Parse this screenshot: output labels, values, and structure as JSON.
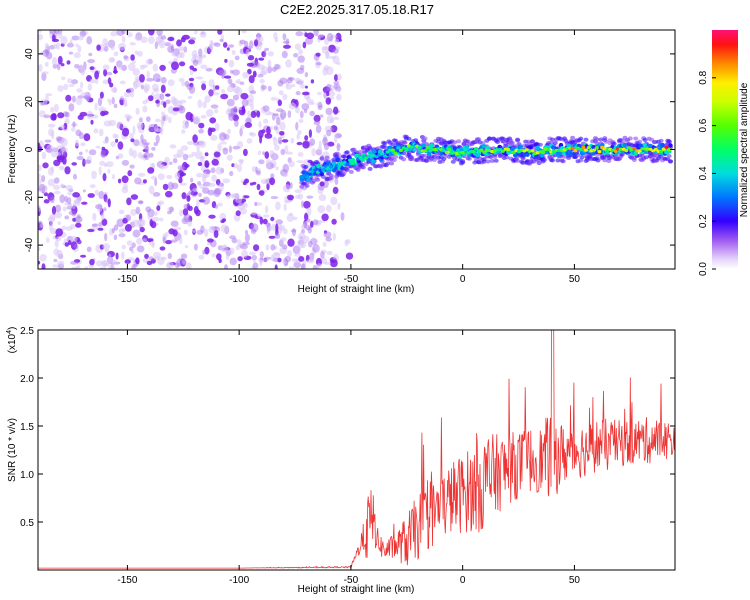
{
  "title": "C2E2.2025.317.05.18.R17",
  "colors": {
    "snr_line": "#ee3333",
    "axis": "#000000",
    "spectro_low": "#7b1fe8",
    "spectro_faint": "#d9c4f7"
  },
  "chart_data": [
    {
      "type": "heatmap",
      "name": "spectrogram",
      "xlabel": "Height of straight line (km)",
      "ylabel": "Frequency (Hz)",
      "xlim": [
        -190,
        95
      ],
      "ylim": [
        -50,
        50
      ],
      "xticks": [
        -150,
        -100,
        -50,
        0,
        50
      ],
      "yticks": [
        -40,
        -20,
        0,
        20,
        40
      ],
      "colorbar": {
        "label": "Normalized spectral amplitude",
        "range": [
          0.0,
          1.0
        ],
        "ticks": [
          0.0,
          0.2,
          0.4,
          0.6,
          0.8
        ],
        "tick_labels": [
          "0.0",
          "0.2",
          "0.4",
          "0.6",
          "0.8"
        ]
      },
      "signal_track": [
        {
          "x": -72,
          "y": -12,
          "amp": 0.35
        },
        {
          "x": -65,
          "y": -9,
          "amp": 0.4
        },
        {
          "x": -55,
          "y": -6,
          "amp": 0.45
        },
        {
          "x": -45,
          "y": -4,
          "amp": 0.5
        },
        {
          "x": -35,
          "y": -2,
          "amp": 0.55
        },
        {
          "x": -25,
          "y": 1,
          "amp": 0.6
        },
        {
          "x": -15,
          "y": 0,
          "amp": 0.6
        },
        {
          "x": 0,
          "y": -1,
          "amp": 0.62
        },
        {
          "x": 15,
          "y": 0,
          "amp": 0.65
        },
        {
          "x": 30,
          "y": -1,
          "amp": 0.7
        },
        {
          "x": 45,
          "y": 0,
          "amp": 0.8
        },
        {
          "x": 60,
          "y": 0,
          "amp": 0.85
        },
        {
          "x": 75,
          "y": 0,
          "amp": 0.9
        },
        {
          "x": 93,
          "y": 0,
          "amp": 0.9
        }
      ],
      "noise_region": {
        "x_from": -190,
        "x_to": -55,
        "amp": 0.1
      }
    },
    {
      "type": "line",
      "name": "snr",
      "xlabel": "Height of straight line (km)",
      "ylabel": "SNR (10 * v/v)",
      "y_multiplier_label": "(x10",
      "y_multiplier_exp": "4",
      "y_multiplier_close": ")",
      "xlim": [
        -190,
        95
      ],
      "ylim": [
        0,
        2.5
      ],
      "xticks": [
        -150,
        -100,
        -50,
        0,
        50
      ],
      "yticks": [
        0.5,
        1.0,
        1.5,
        2.0,
        2.5
      ],
      "ytick_labels": [
        "0.5",
        "1.0",
        "1.5",
        "2.0",
        "2.5"
      ],
      "series": [
        {
          "name": "SNR",
          "x": [
            -190,
            -150,
            -100,
            -50,
            -45,
            -42,
            -40,
            -38,
            -35,
            -30,
            -25,
            -20,
            -15,
            -10,
            -5,
            0,
            5,
            10,
            15,
            20,
            25,
            30,
            35,
            40,
            45,
            50,
            55,
            60,
            65,
            70,
            75,
            80,
            85,
            90,
            95
          ],
          "y": [
            0.02,
            0.02,
            0.02,
            0.03,
            0.3,
            0.45,
            0.55,
            0.3,
            0.2,
            0.25,
            0.3,
            0.45,
            0.55,
            0.65,
            0.75,
            0.8,
            0.85,
            0.9,
            1.0,
            1.05,
            1.1,
            1.15,
            1.15,
            1.2,
            1.2,
            1.25,
            1.25,
            1.3,
            1.3,
            1.32,
            1.33,
            1.35,
            1.35,
            1.36,
            1.35
          ],
          "spread": [
            0,
            0,
            0,
            0.01,
            0.15,
            0.6,
            0.4,
            0.2,
            0.15,
            0.2,
            0.4,
            0.5,
            0.5,
            0.5,
            0.55,
            0.6,
            0.65,
            0.75,
            0.6,
            0.55,
            0.5,
            0.5,
            0.5,
            0.7,
            0.45,
            0.45,
            0.4,
            0.4,
            0.4,
            0.35,
            0.35,
            0.35,
            0.35,
            0.3,
            0.3
          ]
        }
      ]
    }
  ]
}
